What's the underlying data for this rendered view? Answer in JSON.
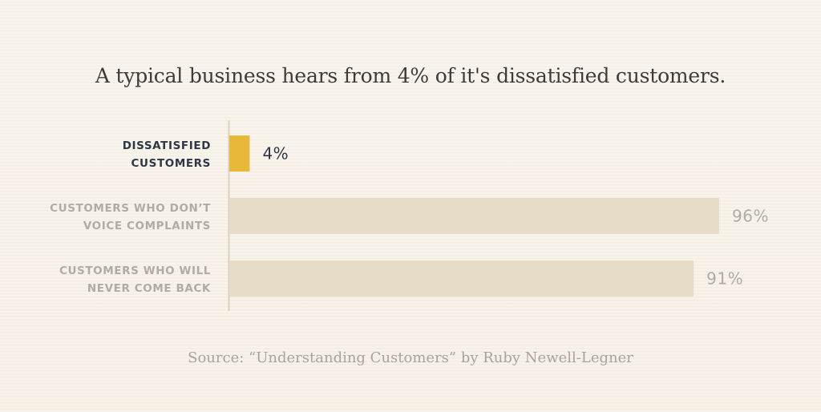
{
  "colors": {
    "highlight_bar": "#e8b83b",
    "muted_bar": "#e7dcc7",
    "highlight_text": "#2f3645",
    "muted_text": "#b1aca3",
    "axis": "#d9d0c0"
  },
  "chart_data": {
    "type": "bar",
    "orientation": "horizontal",
    "title": "A typical business hears from 4% of it's dissatisfied customers.",
    "source": "Source: “Understanding Customers” by Ruby Newell-Legner",
    "xlim": [
      0,
      100
    ],
    "grid": false,
    "categories": [
      [
        "DISSATISFIED",
        "CUSTOMERS"
      ],
      [
        "CUSTOMERS WHO DON’T",
        "VOICE COMPLAINTS"
      ],
      [
        "CUSTOMERS WHO WILL",
        "NEVER COME BACK"
      ]
    ],
    "values": [
      4,
      96,
      91
    ],
    "value_labels": [
      "4%",
      "96%",
      "91%"
    ],
    "highlighted": [
      true,
      false,
      false
    ]
  }
}
